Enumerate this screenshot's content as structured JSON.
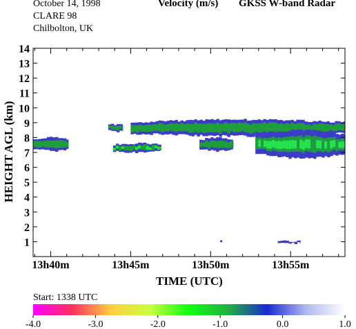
{
  "header": {
    "date": "October  14, 1998",
    "campaign": "CLARE 98",
    "site": "Chilbolton, UK",
    "quantity": "Velocity (m/s)",
    "instrument": "GKSS  W-band Radar"
  },
  "footer": {
    "start": "Start: 1338 UTC"
  },
  "colors": {
    "dark_blue": "#3c3cc8",
    "green_dark": "#1f9f3a",
    "green_bright": "#22e84a"
  },
  "chart_data": {
    "type": "heatmap",
    "title": "Velocity (m/s)",
    "xlabel": "TIME (UTC)",
    "ylabel": "HEIGHT AGL (km)",
    "x_ticks": [
      "13h40m",
      "13h45m",
      "13h50m",
      "13h55m"
    ],
    "x_tick_minutes": [
      40,
      45,
      50,
      55
    ],
    "xlim_minutes": [
      38.9,
      58.4
    ],
    "y_ticks": [
      1,
      2,
      3,
      4,
      5,
      6,
      7,
      8,
      9,
      10,
      11,
      12,
      13,
      14
    ],
    "ylim": [
      0,
      14
    ],
    "colorbar": {
      "ticks": [
        "-4.0",
        "-3.0",
        "-2.0",
        "-1.0",
        "0.0",
        "1.0"
      ],
      "range": [
        -4.0,
        1.0
      ],
      "stops": [
        "#ff00ff",
        "#ff3060",
        "#ffd040",
        "#c8ff40",
        "#10ff10",
        "#20b040",
        "#1a2ad0",
        "#b0b8f0",
        "#ffffff"
      ]
    },
    "echoes": [
      {
        "t_start": 38.9,
        "t_end": 41.1,
        "h_bottom": 7.1,
        "h_top": 8.0,
        "mean_velocity": -0.4
      },
      {
        "t_start": 43.6,
        "t_end": 44.5,
        "h_bottom": 8.4,
        "h_top": 8.9,
        "mean_velocity": -0.3
      },
      {
        "t_start": 43.9,
        "t_end": 46.9,
        "h_bottom": 7.0,
        "h_top": 7.6,
        "mean_velocity": -0.6
      },
      {
        "t_start": 45.0,
        "t_end": 58.4,
        "h_bottom": 8.1,
        "h_top": 9.2,
        "mean_velocity": -0.4
      },
      {
        "t_start": 49.3,
        "t_end": 51.4,
        "h_bottom": 7.1,
        "h_top": 8.0,
        "mean_velocity": -0.3
      },
      {
        "t_start": 52.8,
        "t_end": 58.4,
        "h_bottom": 6.6,
        "h_top": 8.5,
        "mean_velocity": -0.7
      },
      {
        "t_start": 54.2,
        "t_end": 55.6,
        "h_bottom": 0.9,
        "h_top": 1.05,
        "mean_velocity": 0.1
      },
      {
        "t_start": 50.6,
        "t_end": 50.7,
        "h_bottom": 0.95,
        "h_top": 1.05,
        "mean_velocity": 0.2
      }
    ]
  }
}
